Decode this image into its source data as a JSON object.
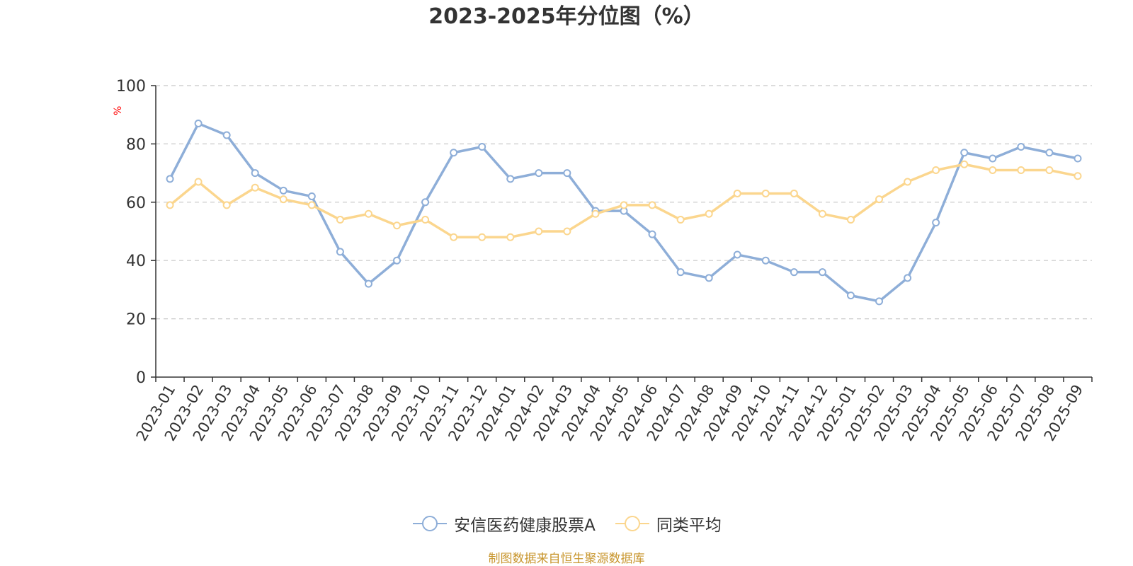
{
  "chart_data": {
    "type": "line",
    "title": "2023-2025年分位图（%）",
    "ylabel": "%",
    "xlabel": "",
    "ylim": [
      0,
      100
    ],
    "yticks": [
      0,
      20,
      40,
      60,
      80,
      100
    ],
    "grid": "horizontal dashed",
    "legend_position": "bottom-center",
    "categories": [
      "2023-01",
      "2023-02",
      "2023-03",
      "2023-04",
      "2023-05",
      "2023-06",
      "2023-07",
      "2023-08",
      "2023-09",
      "2023-10",
      "2023-11",
      "2023-12",
      "2024-01",
      "2024-02",
      "2024-03",
      "2024-04",
      "2024-05",
      "2024-06",
      "2024-07",
      "2024-08",
      "2024-09",
      "2024-10",
      "2024-11",
      "2024-12",
      "2025-01",
      "2025-02",
      "2025-03",
      "2025-04",
      "2025-05",
      "2025-06",
      "2025-07",
      "2025-08",
      "2025-09"
    ],
    "series": [
      {
        "name": "安信医药健康股票A",
        "color": "#8eaed8",
        "values": [
          68,
          87,
          83,
          70,
          64,
          62,
          43,
          32,
          40,
          60,
          77,
          79,
          68,
          70,
          70,
          57,
          57,
          49,
          36,
          34,
          42,
          40,
          36,
          36,
          28,
          26,
          34,
          53,
          77,
          75,
          79,
          77,
          75
        ]
      },
      {
        "name": "同类平均",
        "color": "#fbd68e",
        "values": [
          59,
          67,
          59,
          65,
          61,
          59,
          54,
          56,
          52,
          54,
          48,
          48,
          48,
          50,
          50,
          56,
          59,
          59,
          54,
          56,
          63,
          63,
          63,
          56,
          54,
          61,
          67,
          71,
          73,
          71,
          71,
          71,
          69
        ]
      }
    ]
  },
  "source_note": "制图数据来自恒生聚源数据库"
}
